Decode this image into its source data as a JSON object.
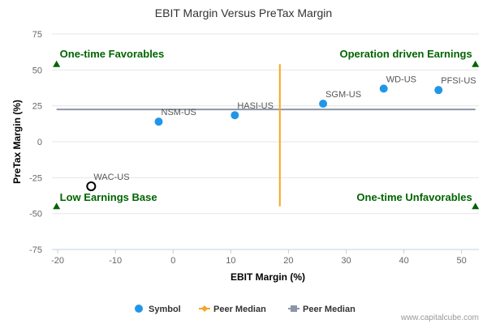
{
  "colors": {
    "symbol": "#2196e8",
    "highlight_stroke": "#000000",
    "x_median": "#f5a623",
    "y_median": "#8c96a6",
    "quadrant": "#006400",
    "grid": "#e6e6e6",
    "axis": "#c0d0e0"
  },
  "chart_data": {
    "type": "scatter",
    "title": "EBIT Margin Versus PreTax Margin",
    "xlabel": "EBIT Margin (%)",
    "ylabel": "PreTax Margin (%)",
    "xlim": [
      -21,
      53
    ],
    "ylim": [
      -75,
      75
    ],
    "x_ticks": [
      -20,
      -10,
      0,
      10,
      20,
      30,
      40,
      50
    ],
    "y_ticks": [
      75,
      50,
      25,
      0,
      -25,
      -50,
      -75
    ],
    "grid": "horizontal",
    "x_median": 18.5,
    "y_median": 22.5,
    "points": [
      {
        "label": "NSM-US",
        "x": -2.5,
        "y": 14,
        "highlight": false
      },
      {
        "label": "HASI-US",
        "x": 10.7,
        "y": 18.5,
        "highlight": false
      },
      {
        "label": "SGM-US",
        "x": 26,
        "y": 26.5,
        "highlight": false
      },
      {
        "label": "WD-US",
        "x": 36.5,
        "y": 37,
        "highlight": false
      },
      {
        "label": "PFSI-US",
        "x": 46,
        "y": 36,
        "highlight": false
      },
      {
        "label": "WAC-US",
        "x": -14.2,
        "y": -31,
        "highlight": true
      }
    ],
    "quadrants": [
      {
        "label": "One-time Favorables",
        "position": "top-left"
      },
      {
        "label": "Operation driven Earnings",
        "position": "top-right"
      },
      {
        "label": "Low Earnings Base",
        "position": "bottom-left"
      },
      {
        "label": "One-time Unfavorables",
        "position": "bottom-right"
      }
    ],
    "legend": {
      "placement": "bottom",
      "items": [
        {
          "label": "Symbol",
          "marker": "circle"
        },
        {
          "label": "Peer Median",
          "marker": "orange-line"
        },
        {
          "label": "Peer Median",
          "marker": "gray-line"
        }
      ]
    }
  },
  "watermark": "www.capitalcube.com"
}
